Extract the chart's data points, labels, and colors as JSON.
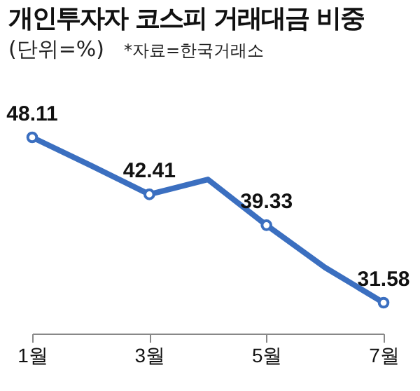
{
  "chart_data": {
    "type": "line",
    "title": "개인투자자 코스피 거래대금 비중",
    "subtitle": "(단위=%)",
    "annotations": [
      "*자료=한국거래소"
    ],
    "categories": [
      "1월",
      null,
      "3월",
      null,
      "5월",
      null,
      "7월"
    ],
    "series": [
      {
        "color": "#3b6fc0",
        "values": [
          48.11,
          45.3,
          42.41,
          43.9,
          39.33,
          35.1,
          31.58
        ],
        "value_labels": [
          "48.11",
          null,
          "42.41",
          null,
          "39.33",
          null,
          "31.58"
        ]
      }
    ],
    "tick_labels": "x",
    "marker": "circle",
    "grid": false
  }
}
